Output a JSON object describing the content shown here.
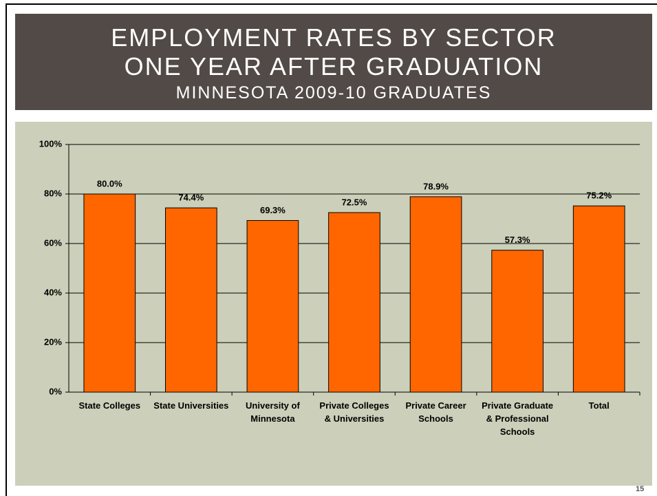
{
  "chart_data": {
    "type": "bar",
    "title": "EMPLOYMENT RATES BY SECTOR",
    "title_line2": "ONE YEAR AFTER GRADUATION",
    "subtitle": "MINNESOTA 2009-10 GRADUATES",
    "categories": [
      "State Colleges",
      "State Universities",
      "University of Minnesota",
      "Private Colleges & Universities",
      "Private Career Schools",
      "Private Graduate & Professional Schools",
      "Total"
    ],
    "values": [
      80.0,
      74.4,
      69.3,
      72.5,
      78.9,
      57.3,
      75.2
    ],
    "value_labels": [
      "80.0%",
      "74.4%",
      "69.3%",
      "72.5%",
      "78.9%",
      "57.3%",
      "75.2%"
    ],
    "color": "#ff6600",
    "ylim": [
      0,
      100
    ],
    "yticks": [
      {
        "value": 0,
        "label": "0%"
      },
      {
        "value": 20,
        "label": "20%"
      },
      {
        "value": 40,
        "label": "40%"
      },
      {
        "value": 60,
        "label": "60%"
      },
      {
        "value": 80,
        "label": "80%"
      },
      {
        "value": 100,
        "label": "100%"
      }
    ],
    "grid": true
  },
  "page_number": "15"
}
